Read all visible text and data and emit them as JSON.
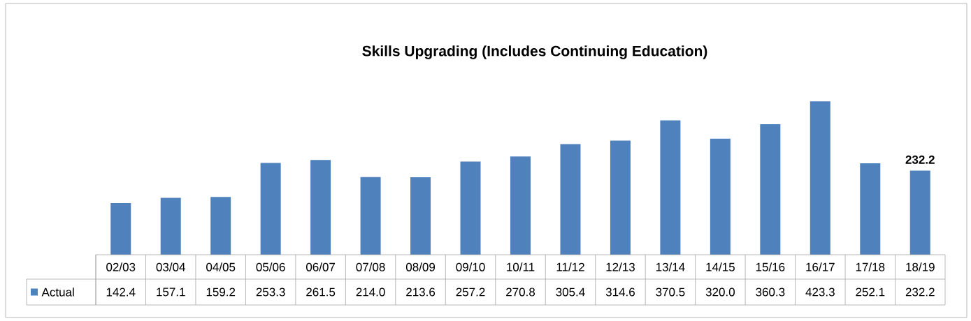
{
  "chart_data": {
    "type": "bar",
    "title": "Skills Upgrading (Includes Continuing Education)",
    "categories": [
      "02/03",
      "03/04",
      "04/05",
      "05/06",
      "06/07",
      "07/08",
      "08/09",
      "09/10",
      "10/11",
      "11/12",
      "12/13",
      "13/14",
      "14/15",
      "15/16",
      "16/17",
      "17/18",
      "18/19"
    ],
    "series": [
      {
        "name": "Actual",
        "color": "#4f81bd",
        "values": [
          142.4,
          157.1,
          159.2,
          253.3,
          261.5,
          214.0,
          213.6,
          257.2,
          270.8,
          305.4,
          314.6,
          370.5,
          320.0,
          360.3,
          423.3,
          252.1,
          232.2
        ],
        "value_labels": [
          "142.4",
          "157.1",
          "159.2",
          "253.3",
          "261.5",
          "214.0",
          "213.6",
          "257.2",
          "270.8",
          "305.4",
          "314.6",
          "370.5",
          "320.0",
          "360.3",
          "423.3",
          "252.1",
          "232.2"
        ]
      }
    ],
    "legend": "bottom",
    "annotations": [
      {
        "text": "232.2",
        "x": "18/19",
        "y": 232.2
      }
    ]
  }
}
